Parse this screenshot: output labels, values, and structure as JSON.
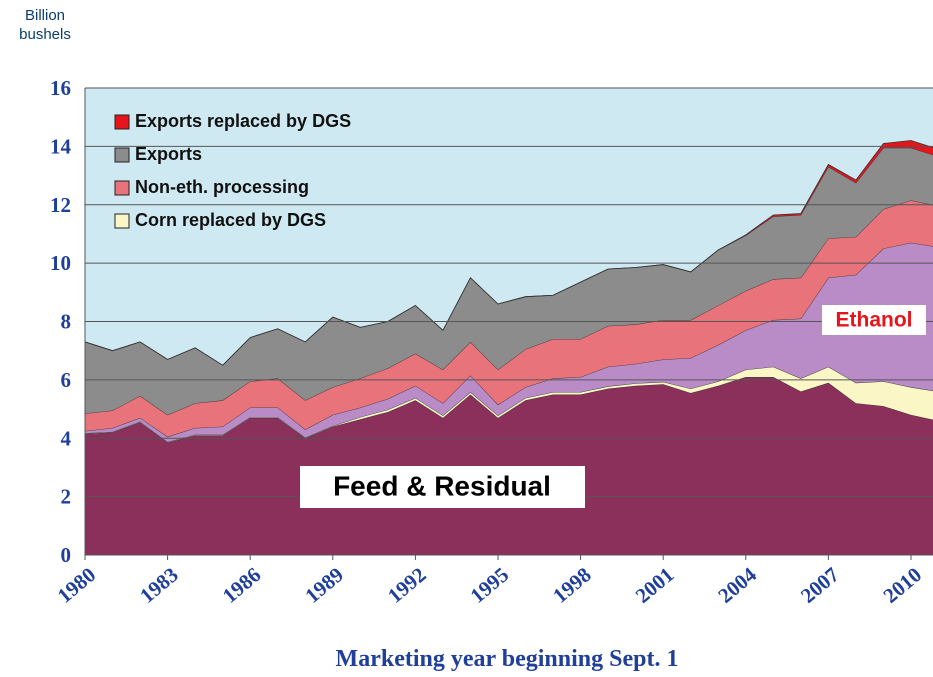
{
  "chart_data": {
    "type": "stacked_area",
    "ylabel": "Billion bushels",
    "xlabel": "Marketing year beginning Sept. 1",
    "x": [
      1980,
      1981,
      1982,
      1983,
      1984,
      1985,
      1986,
      1987,
      1988,
      1989,
      1990,
      1991,
      1992,
      1993,
      1994,
      1995,
      1996,
      1997,
      1998,
      1999,
      2000,
      2001,
      2002,
      2003,
      2004,
      2005,
      2006,
      2007,
      2008,
      2009,
      2010,
      2011
    ],
    "xlim": [
      1980,
      2010.8
    ],
    "xticks": [
      1980,
      1983,
      1986,
      1989,
      1992,
      1995,
      1998,
      2001,
      2004,
      2007,
      2010
    ],
    "ylim": [
      0,
      16
    ],
    "yticks": [
      0,
      2,
      4,
      6,
      8,
      10,
      12,
      14,
      16
    ],
    "grid": true,
    "legend": "upper-left",
    "series": [
      {
        "name": "Feed & Residual",
        "color": "#8b2f5b",
        "in_legend": false,
        "values": [
          4.15,
          4.2,
          4.55,
          3.85,
          4.1,
          4.1,
          4.7,
          4.7,
          4.0,
          4.4,
          4.65,
          4.9,
          5.3,
          4.7,
          5.5,
          4.7,
          5.3,
          5.5,
          5.5,
          5.7,
          5.8,
          5.85,
          5.55,
          5.8,
          6.1,
          6.1,
          5.6,
          5.9,
          5.2,
          5.1,
          4.8,
          4.6
        ]
      },
      {
        "name": "Corn replaced by DGS",
        "color": "#fbf6c6",
        "in_legend": true,
        "values": [
          0.02,
          0.02,
          0.02,
          0.02,
          0.02,
          0.02,
          0.02,
          0.02,
          0.02,
          0.02,
          0.08,
          0.08,
          0.08,
          0.08,
          0.08,
          0.08,
          0.08,
          0.08,
          0.08,
          0.08,
          0.08,
          0.08,
          0.15,
          0.15,
          0.25,
          0.35,
          0.45,
          0.55,
          0.7,
          0.85,
          0.95,
          1.0
        ]
      },
      {
        "name": "Ethanol",
        "color": "#b98cc7",
        "in_legend": false,
        "values": [
          0.08,
          0.13,
          0.13,
          0.18,
          0.23,
          0.28,
          0.33,
          0.33,
          0.28,
          0.38,
          0.32,
          0.37,
          0.42,
          0.42,
          0.57,
          0.37,
          0.37,
          0.47,
          0.52,
          0.67,
          0.67,
          0.77,
          1.05,
          1.25,
          1.35,
          1.6,
          2.05,
          3.05,
          3.7,
          4.55,
          4.95,
          4.95
        ]
      },
      {
        "name": "Non-eth. processing",
        "color": "#e8737a",
        "in_legend": true,
        "values": [
          0.6,
          0.6,
          0.75,
          0.75,
          0.85,
          0.9,
          0.9,
          1.0,
          1.0,
          0.95,
          1.0,
          1.05,
          1.1,
          1.15,
          1.15,
          1.2,
          1.3,
          1.35,
          1.3,
          1.4,
          1.35,
          1.35,
          1.3,
          1.35,
          1.35,
          1.4,
          1.4,
          1.35,
          1.3,
          1.35,
          1.45,
          1.4
        ]
      },
      {
        "name": "Exports",
        "color": "#8c8c8c",
        "in_legend": true,
        "values": [
          2.45,
          2.05,
          1.85,
          1.9,
          1.9,
          1.2,
          1.5,
          1.7,
          2.0,
          2.4,
          1.75,
          1.6,
          1.65,
          1.35,
          2.2,
          2.25,
          1.8,
          1.5,
          1.95,
          1.95,
          1.95,
          1.9,
          1.65,
          1.9,
          1.9,
          2.15,
          2.15,
          2.45,
          1.85,
          2.1,
          1.8,
          1.7
        ]
      },
      {
        "name": "Exports replaced by DGS",
        "color": "#e8141b",
        "in_legend": true,
        "values": [
          0,
          0,
          0,
          0,
          0,
          0,
          0,
          0,
          0,
          0,
          0,
          0,
          0,
          0,
          0,
          0,
          0,
          0,
          0,
          0,
          0,
          0,
          0,
          0,
          0.02,
          0.05,
          0.05,
          0.08,
          0.1,
          0.15,
          0.25,
          0.25
        ]
      }
    ]
  }
}
